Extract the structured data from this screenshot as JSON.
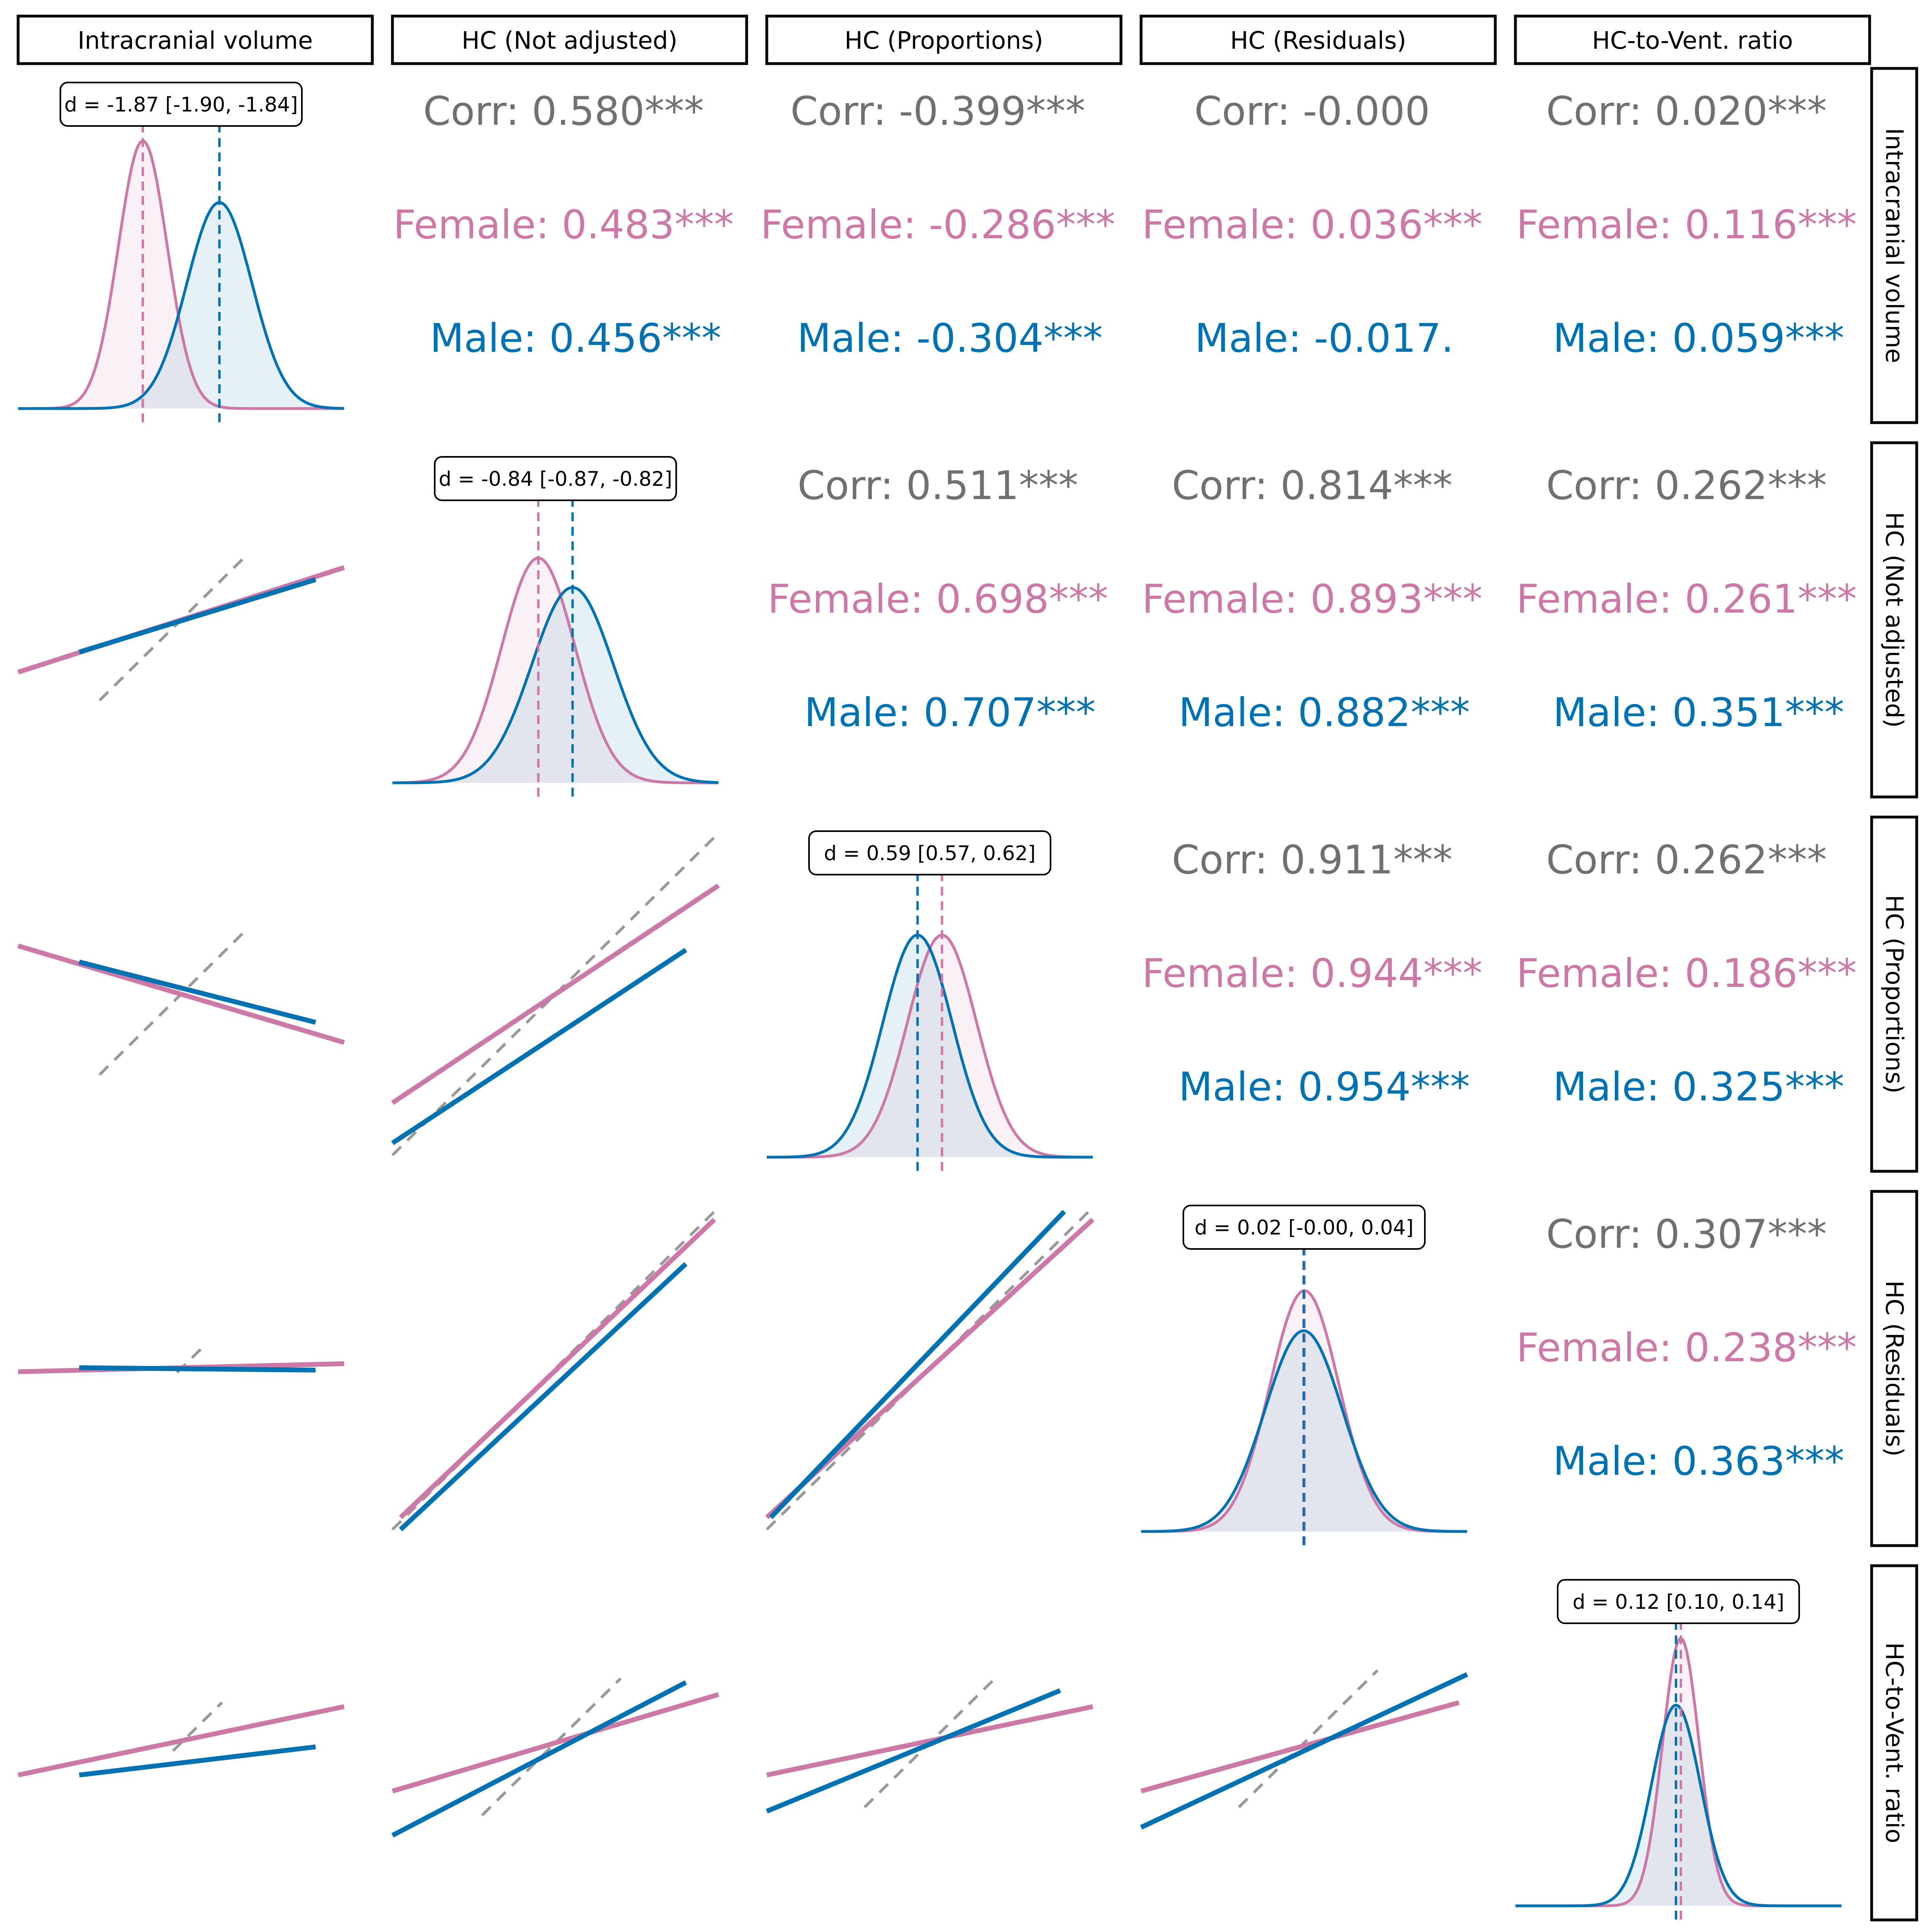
{
  "chart_data": {
    "type": "scatter",
    "title": "",
    "variables": [
      "Intracranial volume",
      "HC (Not adjusted)",
      "HC (Proportions)",
      "HC (Residuals)",
      "HC-to-Vent. ratio"
    ],
    "groups": [
      {
        "name": "Female",
        "color": "#cc79a7"
      },
      {
        "name": "Male",
        "color": "#0072b2"
      }
    ],
    "overall_color": "#707070",
    "reference_line_color": "#999999",
    "legend": "none",
    "grid": false,
    "correlations": [
      {
        "row": "Intracranial volume",
        "col": "HC (Not adjusted)",
        "corr": "Corr: 0.580***",
        "female": "Female: 0.483***",
        "male": "Male: 0.456***"
      },
      {
        "row": "Intracranial volume",
        "col": "HC (Proportions)",
        "corr": "Corr: -0.399***",
        "female": "Female: -0.286***",
        "male": "Male: -0.304***"
      },
      {
        "row": "Intracranial volume",
        "col": "HC (Residuals)",
        "corr": "Corr: -0.000",
        "female": "Female: 0.036***",
        "male": "Male: -0.017."
      },
      {
        "row": "Intracranial volume",
        "col": "HC-to-Vent. ratio",
        "corr": "Corr: 0.020***",
        "female": "Female: 0.116***",
        "male": "Male: 0.059***"
      },
      {
        "row": "HC (Not adjusted)",
        "col": "HC (Proportions)",
        "corr": "Corr: 0.511***",
        "female": "Female: 0.698***",
        "male": "Male: 0.707***"
      },
      {
        "row": "HC (Not adjusted)",
        "col": "HC (Residuals)",
        "corr": "Corr: 0.814***",
        "female": "Female: 0.893***",
        "male": "Male: 0.882***"
      },
      {
        "row": "HC (Not adjusted)",
        "col": "HC-to-Vent. ratio",
        "corr": "Corr: 0.262***",
        "female": "Female: 0.261***",
        "male": "Male: 0.351***"
      },
      {
        "row": "HC (Proportions)",
        "col": "HC (Residuals)",
        "corr": "Corr: 0.911***",
        "female": "Female: 0.944***",
        "male": "Male: 0.954***"
      },
      {
        "row": "HC (Proportions)",
        "col": "HC-to-Vent. ratio",
        "corr": "Corr: 0.262***",
        "female": "Female: 0.186***",
        "male": "Male: 0.325***"
      },
      {
        "row": "HC (Residuals)",
        "col": "HC-to-Vent. ratio",
        "corr": "Corr: 0.307***",
        "female": "Female: 0.238***",
        "male": "Male: 0.363***"
      }
    ],
    "effect_sizes": [
      {
        "variable": "Intracranial volume",
        "label": "d = -1.87 [-1.90, -1.84]",
        "female_mean": -0.94,
        "male_mean": 0.94
      },
      {
        "variable": "HC (Not adjusted)",
        "label": "d = -0.84 [-0.87, -0.82]",
        "female_mean": -0.42,
        "male_mean": 0.42
      },
      {
        "variable": "HC (Proportions)",
        "label": "d = 0.59 [0.57, 0.62]",
        "female_mean": 0.3,
        "male_mean": -0.3
      },
      {
        "variable": "HC (Residuals)",
        "label": "d = 0.02 [-0.00, 0.04]",
        "female_mean": 0.01,
        "male_mean": -0.01
      },
      {
        "variable": "HC-to-Vent. ratio",
        "label": "d = 0.12 [0.10, 0.14]",
        "female_mean": 0.06,
        "male_mean": -0.06
      }
    ],
    "densities": [
      {
        "variable": "Intracranial volume",
        "female_sd": 0.6,
        "male_sd": 0.8,
        "female_peak": 1.0,
        "male_peak": 0.77
      },
      {
        "variable": "HC (Not adjusted)",
        "female_sd": 0.9,
        "male_sd": 1.0,
        "female_peak": 0.84,
        "male_peak": 0.73
      },
      {
        "variable": "HC (Proportions)",
        "female_sd": 0.85,
        "male_sd": 0.85,
        "female_peak": 0.83,
        "male_peak": 0.83
      },
      {
        "variable": "HC (Residuals)",
        "female_sd": 0.85,
        "male_sd": 0.95,
        "female_peak": 0.9,
        "male_peak": 0.75
      },
      {
        "variable": "HC-to-Vent. ratio",
        "female_sd": 0.45,
        "male_sd": 0.6,
        "female_peak": 1.0,
        "male_peak": 0.75
      }
    ],
    "regression_lines": [
      {
        "x": "Intracranial volume",
        "y": "HC (Not adjusted)",
        "female": [
          [
            -2.0,
            -0.65
          ],
          [
            2.0,
            0.65
          ]
        ],
        "male": [
          [
            -1.25,
            -0.4
          ],
          [
            1.65,
            0.5
          ]
        ],
        "reference": [
          [
            -1.0,
            -1.0
          ],
          [
            0.75,
            0.75
          ]
        ]
      },
      {
        "x": "Intracranial volume",
        "y": "HC (Proportions)",
        "female": [
          [
            -2.0,
            0.6
          ],
          [
            2.0,
            -0.6
          ]
        ],
        "male": [
          [
            -1.25,
            0.4
          ],
          [
            1.65,
            -0.35
          ]
        ],
        "reference": [
          [
            -1.0,
            -1.0
          ],
          [
            0.75,
            0.75
          ]
        ]
      },
      {
        "x": "HC (Not adjusted)",
        "y": "HC (Proportions)",
        "female": [
          [
            -2.0,
            -1.35
          ],
          [
            2.0,
            1.35
          ]
        ],
        "male": [
          [
            -2.0,
            -1.85
          ],
          [
            1.6,
            0.55
          ]
        ],
        "reference": [
          [
            -2.0,
            -2.0
          ],
          [
            2.0,
            2.0
          ]
        ]
      },
      {
        "x": "Intracranial volume",
        "y": "HC (Residuals)",
        "female": [
          [
            -2.0,
            -0.04
          ],
          [
            2.0,
            0.06
          ]
        ],
        "male": [
          [
            -1.25,
            0.01
          ],
          [
            1.65,
            -0.02
          ]
        ],
        "reference": [
          [
            -0.05,
            -0.05
          ],
          [
            0.25,
            0.25
          ]
        ]
      },
      {
        "x": "HC (Not adjusted)",
        "y": "HC (Residuals)",
        "female": [
          [
            -1.9,
            -1.85
          ],
          [
            1.95,
            1.85
          ]
        ],
        "male": [
          [
            -1.9,
            -2.0
          ],
          [
            1.6,
            1.3
          ]
        ],
        "reference": [
          [
            -2.0,
            -2.0
          ],
          [
            2.0,
            2.0
          ]
        ]
      },
      {
        "x": "HC (Proportions)",
        "y": "HC (Residuals)",
        "female": [
          [
            -2.0,
            -1.85
          ],
          [
            2.0,
            1.85
          ]
        ],
        "male": [
          [
            -1.95,
            -1.85
          ],
          [
            1.65,
            1.95
          ]
        ],
        "reference": [
          [
            -2.0,
            -2.0
          ],
          [
            2.0,
            2.0
          ]
        ]
      },
      {
        "x": "Intracranial volume",
        "y": "HC-to-Vent. ratio",
        "female": [
          [
            -2.0,
            -0.4
          ],
          [
            2.0,
            0.45
          ]
        ],
        "male": [
          [
            -1.25,
            -0.4
          ],
          [
            1.65,
            -0.05
          ]
        ],
        "reference": [
          [
            -0.1,
            -0.1
          ],
          [
            0.5,
            0.5
          ]
        ]
      },
      {
        "x": "HC (Not adjusted)",
        "y": "HC-to-Vent. ratio",
        "female": [
          [
            -2.0,
            -0.6
          ],
          [
            2.0,
            0.6
          ]
        ],
        "male": [
          [
            -2.0,
            -1.15
          ],
          [
            1.6,
            0.75
          ]
        ],
        "reference": [
          [
            -0.9,
            -0.9
          ],
          [
            0.8,
            0.8
          ]
        ]
      },
      {
        "x": "HC (Proportions)",
        "y": "HC-to-Vent. ratio",
        "female": [
          [
            -2.0,
            -0.4
          ],
          [
            2.0,
            0.45
          ]
        ],
        "male": [
          [
            -2.0,
            -0.85
          ],
          [
            1.6,
            0.65
          ]
        ],
        "reference": [
          [
            -0.8,
            -0.8
          ],
          [
            0.8,
            0.8
          ]
        ]
      },
      {
        "x": "HC (Residuals)",
        "y": "HC-to-Vent. ratio",
        "female": [
          [
            -2.0,
            -0.6
          ],
          [
            1.9,
            0.5
          ]
        ],
        "male": [
          [
            -2.0,
            -1.05
          ],
          [
            2.0,
            0.85
          ]
        ],
        "reference": [
          [
            -0.8,
            -0.8
          ],
          [
            0.9,
            0.9
          ]
        ]
      }
    ],
    "panel_ranges": {
      "x": [
        -2,
        2
      ],
      "y": [
        -2,
        2
      ]
    },
    "density_range": [
      -4,
      4
    ]
  }
}
